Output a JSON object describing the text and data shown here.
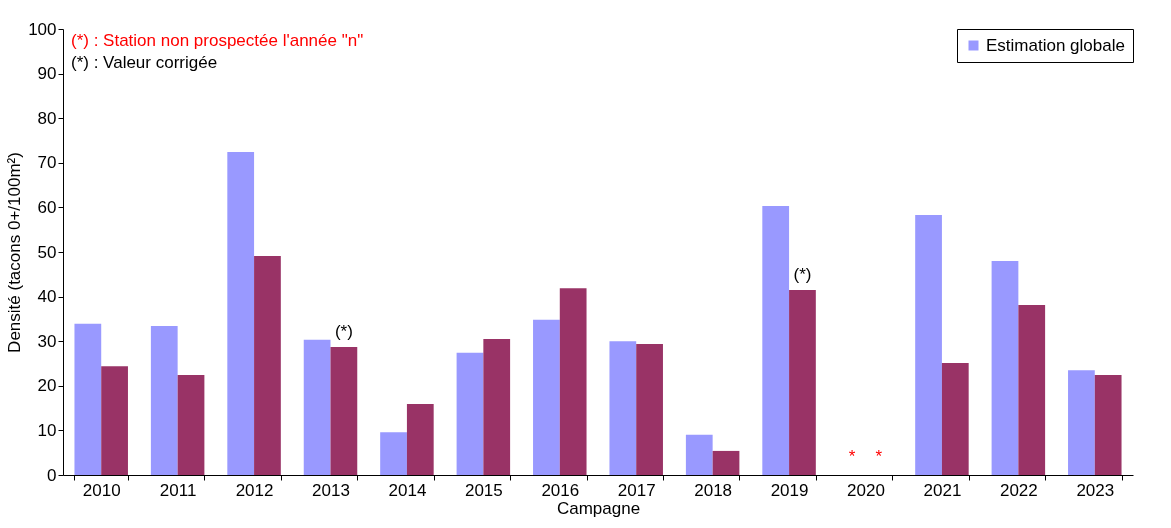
{
  "chart_data": {
    "type": "bar",
    "xlabel": "Campagne",
    "ylabel": "Densité (tacons 0+/100m²)",
    "categories": [
      "2010",
      "2011",
      "2012",
      "2013",
      "2014",
      "2015",
      "2016",
      "2017",
      "2018",
      "2019",
      "2020",
      "2021",
      "2022",
      "2023"
    ],
    "series": [
      {
        "name": "Estimation globale",
        "color": "#9999ff",
        "values": [
          33.9,
          33.4,
          72.4,
          30.3,
          9.6,
          27.4,
          34.8,
          30.0,
          9.0,
          60.3,
          null,
          58.3,
          48.0,
          23.5
        ]
      },
      {
        "color": "#993366",
        "values": [
          24.4,
          22.4,
          49.1,
          28.7,
          15.9,
          30.5,
          41.9,
          29.4,
          5.4,
          41.5,
          null,
          25.1,
          38.1,
          22.4
        ]
      }
    ],
    "ylim": [
      0,
      100
    ],
    "yticks": [
      0,
      10,
      20,
      30,
      40,
      50,
      60,
      70,
      80,
      90,
      100
    ],
    "grid": false,
    "legend": "top right",
    "annotations": [
      "(*) : Station non prospectée l'année \"n\"",
      "(*) : Valeur corrigée",
      {
        "text": "(*)",
        "x": "2013",
        "y": 28.7
      },
      {
        "text": "(*)",
        "x": "2019",
        "y": 41.5
      },
      "*",
      "*"
    ]
  }
}
